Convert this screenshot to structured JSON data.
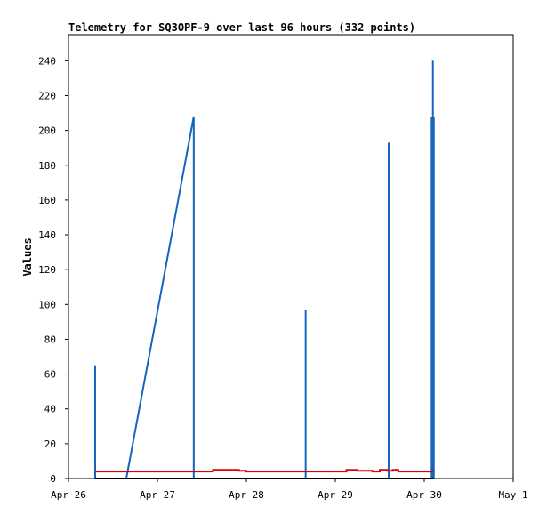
{
  "chart_data": {
    "type": "line",
    "title": "Telemetry for SQ3OPF-9 over last 96 hours (332 points)",
    "ylabel": "Values",
    "xlabel": "",
    "xlim": [
      "2024-04-26T00:00",
      "2024-05-01T00:00"
    ],
    "ylim": [
      0,
      255
    ],
    "x_ticks": [
      "Apr 26",
      "Apr 27",
      "Apr 28",
      "Apr 29",
      "Apr 30",
      "May 1"
    ],
    "y_ticks": [
      0,
      20,
      40,
      60,
      80,
      100,
      120,
      140,
      160,
      180,
      200,
      220,
      240
    ],
    "grid": false,
    "legend": "none",
    "series": [
      {
        "color": "#1565c0",
        "values": [
          [
            "2024-04-26T07:12",
            0
          ],
          [
            "2024-04-26T07:12",
            65
          ],
          [
            "2024-04-26T07:12",
            0
          ],
          [
            "2024-04-26T15:36",
            0
          ],
          [
            "2024-04-27T09:48",
            208
          ],
          [
            "2024-04-27T09:48",
            0
          ],
          [
            "2024-04-28T16:00",
            0
          ],
          [
            "2024-04-28T16:00",
            97
          ],
          [
            "2024-04-28T16:00",
            0
          ],
          [
            "2024-04-29T14:24",
            0
          ],
          [
            "2024-04-29T14:24",
            193
          ],
          [
            "2024-04-29T14:24",
            0
          ],
          [
            "2024-04-30T02:00",
            0
          ],
          [
            "2024-04-30T02:00",
            208
          ],
          [
            "2024-04-30T02:00",
            0
          ],
          [
            "2024-04-30T02:20",
            0
          ],
          [
            "2024-04-30T02:20",
            240
          ],
          [
            "2024-04-30T02:20",
            0
          ],
          [
            "2024-04-30T02:35",
            0
          ],
          [
            "2024-04-30T02:35",
            208
          ],
          [
            "2024-04-30T02:35",
            0
          ]
        ]
      },
      {
        "color": "#e00000",
        "values": [
          [
            "2024-04-26T07:12",
            4
          ],
          [
            "2024-04-27T15:00",
            4
          ],
          [
            "2024-04-27T15:00",
            5
          ],
          [
            "2024-04-27T22:00",
            5
          ],
          [
            "2024-04-27T22:00",
            4.5
          ],
          [
            "2024-04-28T00:00",
            4.5
          ],
          [
            "2024-04-28T00:00",
            4
          ],
          [
            "2024-04-29T03:00",
            4
          ],
          [
            "2024-04-29T03:00",
            5
          ],
          [
            "2024-04-29T06:00",
            5
          ],
          [
            "2024-04-29T06:00",
            4.5
          ],
          [
            "2024-04-29T10:00",
            4.5
          ],
          [
            "2024-04-29T10:00",
            4
          ],
          [
            "2024-04-29T12:00",
            4
          ],
          [
            "2024-04-29T12:00",
            5
          ],
          [
            "2024-04-29T14:00",
            5
          ],
          [
            "2024-04-29T14:00",
            4.5
          ],
          [
            "2024-04-29T15:30",
            4.5
          ],
          [
            "2024-04-29T15:30",
            5
          ],
          [
            "2024-04-29T17:00",
            5
          ],
          [
            "2024-04-29T17:00",
            4
          ],
          [
            "2024-04-30T02:35",
            4
          ]
        ]
      },
      {
        "color": "#000000",
        "values": [
          [
            "2024-04-26T07:12",
            0
          ],
          [
            "2024-04-30T02:35",
            0
          ]
        ]
      }
    ]
  }
}
